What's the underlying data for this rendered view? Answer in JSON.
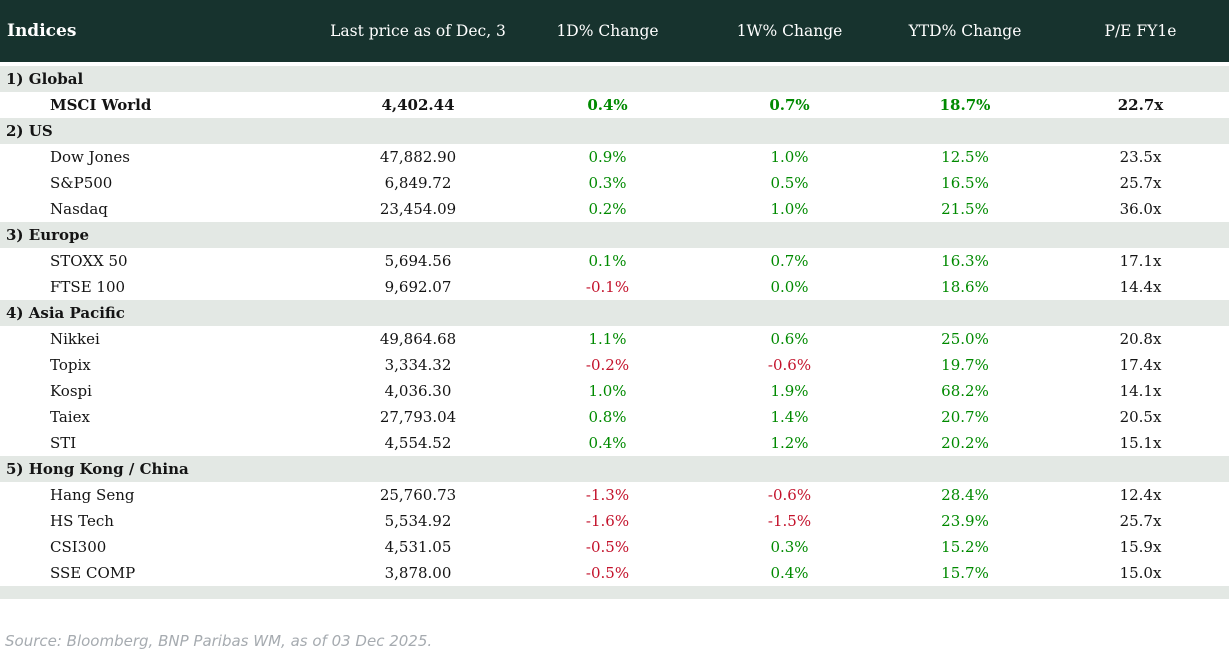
{
  "chart_data": {
    "type": "table",
    "title": "Indices",
    "columns": [
      "Indices",
      "Last price as of Dec, 3",
      "1D% Change",
      "1W% Change",
      "YTD% Change",
      "P/E FY1e"
    ],
    "sections": [
      {
        "label": "1) Global",
        "rows": [
          {
            "name": "MSCI World",
            "last_price": "4,402.44",
            "d1": "0.4%",
            "w1": "0.7%",
            "ytd": "18.7%",
            "pe": "22.7x",
            "bold": true
          }
        ]
      },
      {
        "label": "2) US",
        "rows": [
          {
            "name": "Dow Jones",
            "last_price": "47,882.90",
            "d1": "0.9%",
            "w1": "1.0%",
            "ytd": "12.5%",
            "pe": "23.5x",
            "bold": false
          },
          {
            "name": "S&P500",
            "last_price": "6,849.72",
            "d1": "0.3%",
            "w1": "0.5%",
            "ytd": "16.5%",
            "pe": "25.7x",
            "bold": false
          },
          {
            "name": "Nasdaq",
            "last_price": "23,454.09",
            "d1": "0.2%",
            "w1": "1.0%",
            "ytd": "21.5%",
            "pe": "36.0x",
            "bold": false
          }
        ]
      },
      {
        "label": "3) Europe",
        "rows": [
          {
            "name": "STOXX 50",
            "last_price": "5,694.56",
            "d1": "0.1%",
            "w1": "0.7%",
            "ytd": "16.3%",
            "pe": "17.1x",
            "bold": false
          },
          {
            "name": "FTSE 100",
            "last_price": "9,692.07",
            "d1": "-0.1%",
            "w1": "0.0%",
            "ytd": "18.6%",
            "pe": "14.4x",
            "bold": false
          }
        ]
      },
      {
        "label": "4) Asia Pacific",
        "rows": [
          {
            "name": "Nikkei",
            "last_price": "49,864.68",
            "d1": "1.1%",
            "w1": "0.6%",
            "ytd": "25.0%",
            "pe": "20.8x",
            "bold": false
          },
          {
            "name": "Topix",
            "last_price": "3,334.32",
            "d1": "-0.2%",
            "w1": "-0.6%",
            "ytd": "19.7%",
            "pe": "17.4x",
            "bold": false
          },
          {
            "name": "Kospi",
            "last_price": "4,036.30",
            "d1": "1.0%",
            "w1": "1.9%",
            "ytd": "68.2%",
            "pe": "14.1x",
            "bold": false
          },
          {
            "name": "Taiex",
            "last_price": "27,793.04",
            "d1": "0.8%",
            "w1": "1.4%",
            "ytd": "20.7%",
            "pe": "20.5x",
            "bold": false
          },
          {
            "name": "STI",
            "last_price": "4,554.52",
            "d1": "0.4%",
            "w1": "1.2%",
            "ytd": "20.2%",
            "pe": "15.1x",
            "bold": false
          }
        ]
      },
      {
        "label": "5) Hong Kong / China",
        "rows": [
          {
            "name": "Hang Seng",
            "last_price": "25,760.73",
            "d1": "-1.3%",
            "w1": "-0.6%",
            "ytd": "28.4%",
            "pe": "12.4x",
            "bold": false
          },
          {
            "name": "HS Tech",
            "last_price": "5,534.92",
            "d1": "-1.6%",
            "w1": "-1.5%",
            "ytd": "23.9%",
            "pe": "25.7x",
            "bold": false
          },
          {
            "name": "CSI300",
            "last_price": "4,531.05",
            "d1": "-0.5%",
            "w1": "0.3%",
            "ytd": "15.2%",
            "pe": "15.9x",
            "bold": false
          },
          {
            "name": "SSE COMP",
            "last_price": "3,878.00",
            "d1": "-0.5%",
            "w1": "0.4%",
            "ytd": "15.7%",
            "pe": "15.0x",
            "bold": false
          }
        ]
      }
    ],
    "source_note": "Source: Bloomberg, BNP Paribas WM, as of 03 Dec 2025."
  },
  "colors": {
    "header_bg": "#17332e",
    "section_bg": "#e3e8e4",
    "positive": "#008a00",
    "negative": "#c3122b",
    "source_text": "#a6abb0"
  }
}
